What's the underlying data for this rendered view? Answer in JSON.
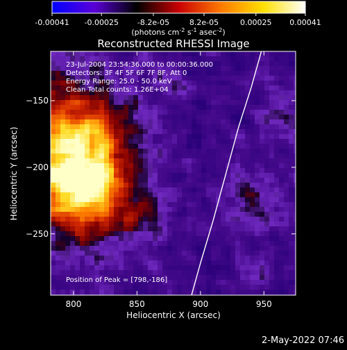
{
  "colorbar": {
    "ticks": [
      "-0.00041",
      "-0.00025",
      "-8.2e-05",
      "8.2e-05",
      "0.00025",
      "0.00041"
    ],
    "tick_values": [
      -0.00041,
      -0.00025,
      -8.2e-05,
      8.2e-05,
      0.00025,
      0.00041
    ],
    "range": [
      -0.00041,
      0.00041
    ],
    "units": {
      "prefix": "(photons cm",
      "exp1": "-2",
      "mid1": " s",
      "exp2": "-1",
      "mid2": " asec",
      "exp3": "-2",
      "suffix": ")"
    },
    "colors": [
      "#0000ff",
      "#5a00d8",
      "#000000",
      "#c80000",
      "#ff7a00",
      "#ffe000",
      "#ffffff"
    ]
  },
  "chart_data": {
    "type": "heatmap",
    "title": "Reconstructed RHESSI Image",
    "xlabel": "Heliocentric X (arcsec)",
    "ylabel": "Heliocentric Y (arcsec)",
    "xlim": [
      782,
      975
    ],
    "ylim": [
      -296,
      -113
    ],
    "xticks": [
      800,
      850,
      900,
      950
    ],
    "yticks": [
      -150,
      -200,
      -250
    ],
    "info_lines": [
      "23-Jul-2004 23:54:36.000 to 00:00:36.000",
      "Detectors: 3F 4F 5F 6F 7F 8F, Att 0",
      "Energy Range: 25.0 - 50.0 keV",
      "Clean    Total counts: 1.26E+04"
    ],
    "peak_label": "Position of Peak = [798,-186]",
    "peak": [
      798,
      -186
    ],
    "limb_points": [
      [
        893,
        -296
      ],
      [
        900,
        -272
      ],
      [
        910,
        -240
      ],
      [
        920,
        -205
      ],
      [
        930,
        -170
      ],
      [
        940,
        -140
      ],
      [
        948,
        -113
      ]
    ]
  },
  "timestamp": "2-May-2022 07:46"
}
